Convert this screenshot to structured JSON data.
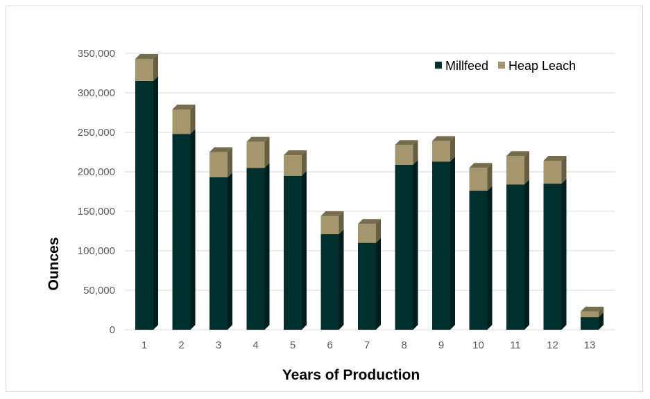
{
  "chart_data": {
    "type": "bar",
    "stacked": true,
    "style": "3d",
    "categories": [
      "1",
      "2",
      "3",
      "4",
      "5",
      "6",
      "7",
      "8",
      "9",
      "10",
      "11",
      "12",
      "13"
    ],
    "series": [
      {
        "name": "Millfeed",
        "color": "#00302e",
        "values": [
          315000,
          248000,
          193000,
          205000,
          195000,
          121000,
          110000,
          209000,
          213000,
          176000,
          184000,
          185000,
          16000
        ]
      },
      {
        "name": "Heap Leach",
        "color": "#a4976e",
        "values": [
          28000,
          31000,
          32000,
          33000,
          26000,
          23000,
          24000,
          25000,
          26000,
          29000,
          36000,
          29000,
          7000
        ]
      }
    ],
    "xlabel": "Years of Production",
    "ylabel": "Ounces",
    "ylim": [
      0,
      350000
    ],
    "yticks": [
      0,
      50000,
      100000,
      150000,
      200000,
      250000,
      300000,
      350000
    ],
    "ytick_labels": [
      "0",
      "50,000",
      "100,000",
      "150,000",
      "200,000",
      "250,000",
      "300,000",
      "350,000"
    ],
    "grid": true,
    "legend_position": "top-right"
  }
}
